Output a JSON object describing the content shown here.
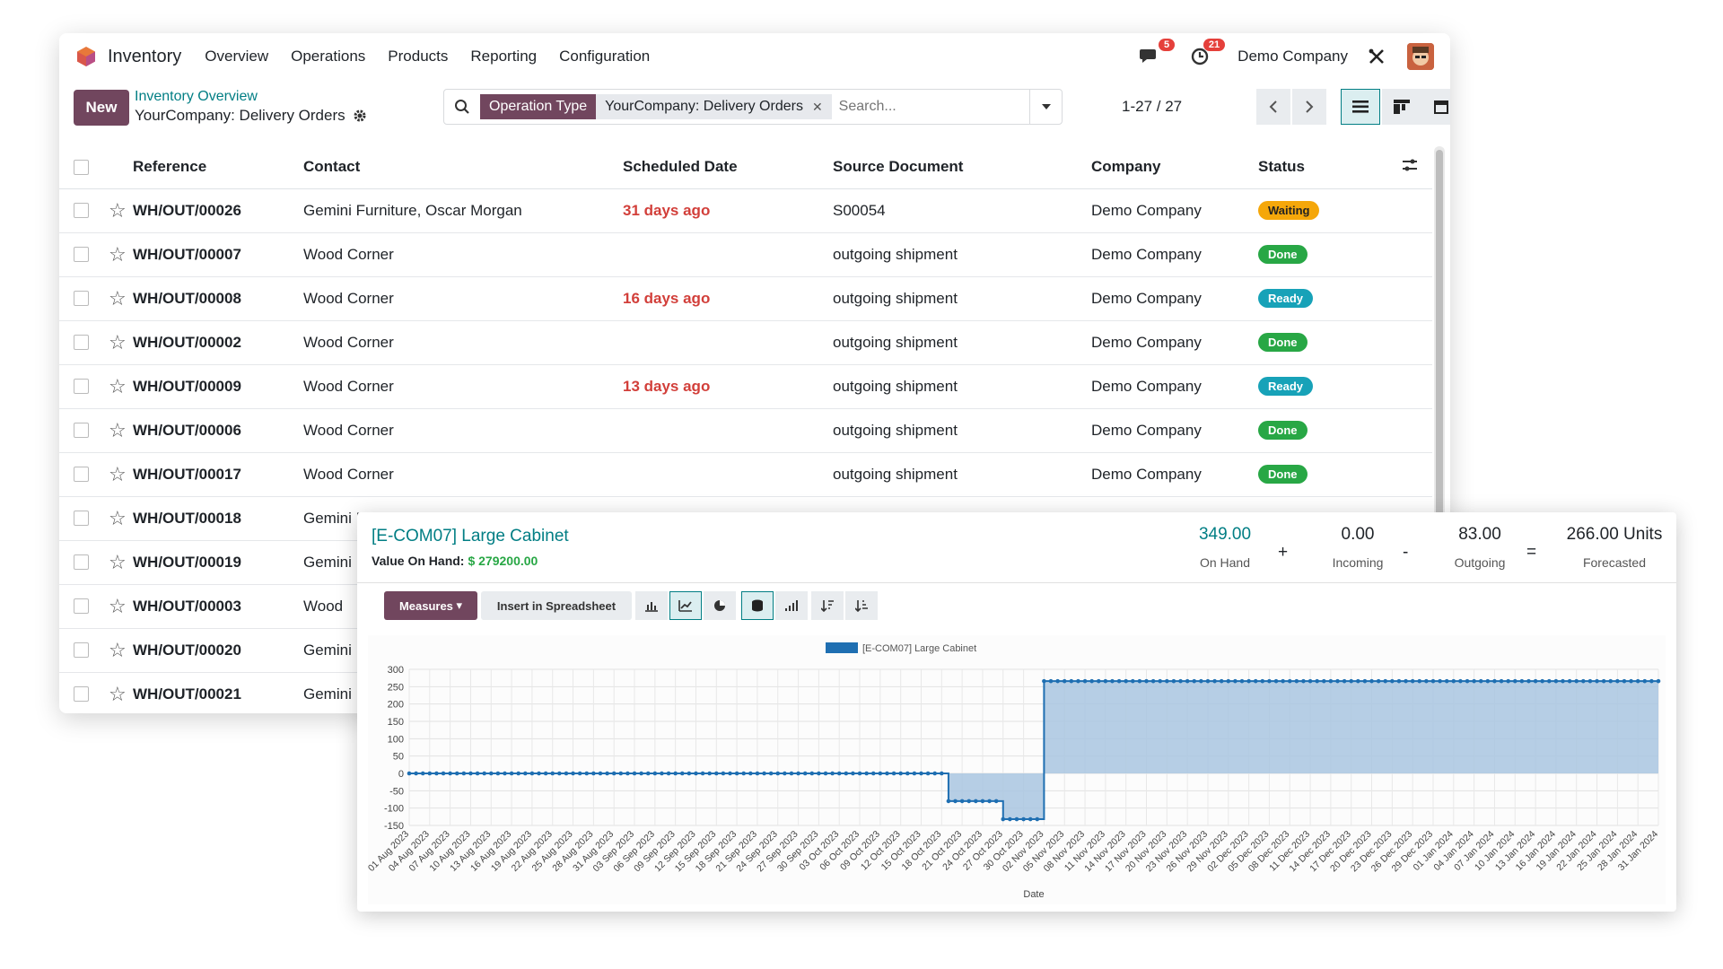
{
  "topbar": {
    "app_name": "Inventory",
    "menu": [
      "Overview",
      "Operations",
      "Products",
      "Reporting",
      "Configuration"
    ],
    "messages_badge": "5",
    "activities_badge": "21",
    "company": "Demo Company"
  },
  "control": {
    "new_label": "New",
    "breadcrumb_parent": "Inventory Overview",
    "breadcrumb_current": "YourCompany: Delivery Orders",
    "facet_label": "Operation Type",
    "facet_value": "YourCompany: Delivery Orders",
    "search_placeholder": "Search...",
    "pager": "1-27 / 27"
  },
  "table": {
    "headers": [
      "Reference",
      "Contact",
      "Scheduled Date",
      "Source Document",
      "Company",
      "Status"
    ],
    "rows": [
      {
        "ref": "WH/OUT/00026",
        "contact": "Gemini Furniture, Oscar Morgan",
        "date": "31 days ago",
        "source": "S00054",
        "company": "Demo Company",
        "status": "Waiting",
        "status_kind": "waiting"
      },
      {
        "ref": "WH/OUT/00007",
        "contact": "Wood Corner",
        "date": "",
        "source": "outgoing shipment",
        "company": "Demo Company",
        "status": "Done",
        "status_kind": "done"
      },
      {
        "ref": "WH/OUT/00008",
        "contact": "Wood Corner",
        "date": "16 days ago",
        "source": "outgoing shipment",
        "company": "Demo Company",
        "status": "Ready",
        "status_kind": "ready"
      },
      {
        "ref": "WH/OUT/00002",
        "contact": "Wood Corner",
        "date": "",
        "source": "outgoing shipment",
        "company": "Demo Company",
        "status": "Done",
        "status_kind": "done"
      },
      {
        "ref": "WH/OUT/00009",
        "contact": "Wood Corner",
        "date": "13 days ago",
        "source": "outgoing shipment",
        "company": "Demo Company",
        "status": "Ready",
        "status_kind": "ready"
      },
      {
        "ref": "WH/OUT/00006",
        "contact": "Wood Corner",
        "date": "",
        "source": "outgoing shipment",
        "company": "Demo Company",
        "status": "Done",
        "status_kind": "done"
      },
      {
        "ref": "WH/OUT/00017",
        "contact": "Wood Corner",
        "date": "",
        "source": "outgoing shipment",
        "company": "Demo Company",
        "status": "Done",
        "status_kind": "done"
      },
      {
        "ref": "WH/OUT/00018",
        "contact": "Gemini Furniture, Oscar Morgan",
        "date": "",
        "source": "",
        "company": "",
        "status": "",
        "status_kind": ""
      },
      {
        "ref": "WH/OUT/00019",
        "contact": "Gemini",
        "date": "",
        "source": "",
        "company": "",
        "status": "",
        "status_kind": ""
      },
      {
        "ref": "WH/OUT/00003",
        "contact": "Wood",
        "date": "",
        "source": "",
        "company": "",
        "status": "",
        "status_kind": ""
      },
      {
        "ref": "WH/OUT/00020",
        "contact": "Gemini",
        "date": "",
        "source": "",
        "company": "",
        "status": "",
        "status_kind": ""
      },
      {
        "ref": "WH/OUT/00021",
        "contact": "Gemini",
        "date": "",
        "source": "",
        "company": "",
        "status": "",
        "status_kind": ""
      }
    ]
  },
  "forecast": {
    "title": "[E-COM07] Large Cabinet",
    "value_label": "Value On Hand:",
    "value": "$ 279200.00",
    "on_hand": "349.00",
    "on_hand_label": "On Hand",
    "incoming": "0.00",
    "incoming_label": "Incoming",
    "outgoing": "83.00",
    "outgoing_label": "Outgoing",
    "forecasted": "266.00 Units",
    "forecasted_label": "Forecasted",
    "op_plus": "+",
    "op_minus": "-",
    "op_equals": "=",
    "measures_label": "Measures",
    "spreadsheet_label": "Insert in Spreadsheet",
    "accent_color": "#1f6fb2",
    "fill_color": "#a9c6e1"
  },
  "chart_data": {
    "type": "area",
    "title": "",
    "xlabel": "Date",
    "ylabel": "",
    "ylim": [
      -150,
      300
    ],
    "yticks": [
      300,
      250,
      200,
      150,
      100,
      50,
      0,
      -50,
      -100,
      -150
    ],
    "legend": "top-center",
    "grid": true,
    "series": [
      {
        "name": "[E-COM07] Large Cabinet"
      }
    ],
    "x_labels": [
      "01 Aug 2023",
      "04 Aug 2023",
      "07 Aug 2023",
      "10 Aug 2023",
      "13 Aug 2023",
      "16 Aug 2023",
      "19 Aug 2023",
      "22 Aug 2023",
      "25 Aug 2023",
      "28 Aug 2023",
      "31 Aug 2023",
      "03 Sep 2023",
      "06 Sep 2023",
      "09 Sep 2023",
      "12 Sep 2023",
      "15 Sep 2023",
      "18 Sep 2023",
      "21 Sep 2023",
      "24 Sep 2023",
      "27 Sep 2023",
      "30 Sep 2023",
      "03 Oct 2023",
      "06 Oct 2023",
      "09 Oct 2023",
      "12 Oct 2023",
      "15 Oct 2023",
      "18 Oct 2023",
      "21 Oct 2023",
      "24 Oct 2023",
      "27 Oct 2023",
      "30 Oct 2023",
      "02 Nov 2023",
      "05 Nov 2023",
      "08 Nov 2023",
      "11 Nov 2023",
      "14 Nov 2023",
      "17 Nov 2023",
      "20 Nov 2023",
      "23 Nov 2023",
      "26 Nov 2023",
      "29 Nov 2023",
      "02 Dec 2023",
      "05 Dec 2023",
      "08 Dec 2023",
      "11 Dec 2023",
      "14 Dec 2023",
      "17 Dec 2023",
      "20 Dec 2023",
      "23 Dec 2023",
      "26 Dec 2023",
      "29 Dec 2023",
      "01 Jan 2024",
      "04 Jan 2024",
      "07 Jan 2024",
      "10 Jan 2024",
      "13 Jan 2024",
      "16 Jan 2024",
      "19 Jan 2024",
      "22 Jan 2024",
      "25 Jan 2024",
      "28 Jan 2024",
      "31 Jan 2024"
    ],
    "segments": [
      {
        "from": "2023-08-01",
        "to": "2023-10-18",
        "value": 0
      },
      {
        "from": "2023-10-19",
        "to": "2023-10-26",
        "value": -80
      },
      {
        "from": "2023-10-27",
        "to": "2023-11-01",
        "value": -132
      },
      {
        "from": "2023-11-02",
        "to": "2024-01-31",
        "value": 266
      }
    ]
  }
}
